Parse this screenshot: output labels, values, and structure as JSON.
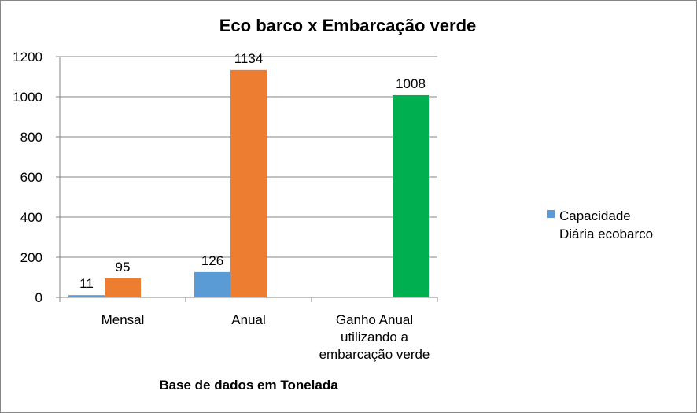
{
  "chart_data": {
    "type": "bar",
    "title": "Eco barco x Embarcação verde",
    "xlabel": "Base de dados em Tonelada",
    "ylabel": "",
    "ylim": [
      0,
      1200
    ],
    "yticks": [
      0,
      200,
      400,
      600,
      800,
      1000,
      1200
    ],
    "grid": true,
    "legend_position": "right",
    "categories": [
      [
        "Mensal"
      ],
      [
        "Anual"
      ],
      [
        "Ganho Anual",
        "utilizando a",
        "embarcação verde"
      ]
    ],
    "series": [
      {
        "name": "Capacidade Diária ecobarco",
        "legend_lines": [
          "Capacidade",
          "Diária ecobarco"
        ],
        "color": "#5B9BD5",
        "values": [
          11,
          126,
          null
        ]
      },
      {
        "color": "#ED7D31",
        "values": [
          95,
          1134,
          null
        ]
      },
      {
        "color": "#00B050",
        "values": [
          null,
          null,
          1008
        ]
      }
    ]
  }
}
